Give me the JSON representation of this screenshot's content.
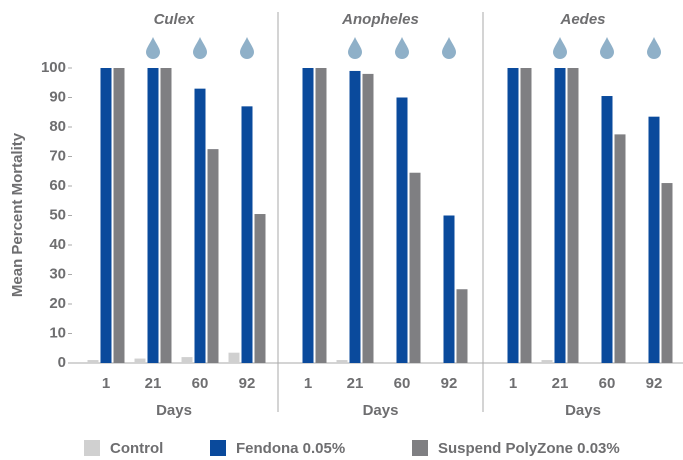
{
  "chart_data": [
    {
      "type": "bar",
      "title": "Culex",
      "xlabel": "Days",
      "ylabel": "Mean Percent Mortality",
      "categories": [
        "1",
        "21",
        "60",
        "92"
      ],
      "ylim": [
        0,
        100
      ],
      "yticks": [
        0,
        10,
        20,
        30,
        40,
        50,
        60,
        70,
        80,
        90,
        100
      ],
      "grid": false,
      "legend": "bottom",
      "series": [
        {
          "name": "Control",
          "color": "#d0d0d0",
          "values": [
            1,
            1.5,
            2,
            3.5
          ]
        },
        {
          "name": "Fendona 0.05%",
          "color": "#0a4a9c",
          "values": [
            100,
            100,
            93,
            87
          ]
        },
        {
          "name": "Suspend PolyZone 0.03%",
          "color": "#7f7f82",
          "values": [
            100,
            100,
            72.5,
            50.5
          ]
        }
      ]
    },
    {
      "type": "bar",
      "title": "Anopheles",
      "xlabel": "Days",
      "categories": [
        "1",
        "21",
        "60",
        "92"
      ],
      "ylim": [
        0,
        100
      ],
      "series": [
        {
          "color": "#d0d0d0",
          "values": [
            0,
            1,
            0,
            0
          ]
        },
        {
          "color": "#0a4a9c",
          "values": [
            100,
            99,
            90,
            50
          ]
        },
        {
          "color": "#7f7f82",
          "values": [
            100,
            98,
            64.5,
            25
          ]
        }
      ]
    },
    {
      "type": "bar",
      "title": "Aedes",
      "xlabel": "Days",
      "categories": [
        "1",
        "21",
        "60",
        "92"
      ],
      "ylim": [
        0,
        100
      ],
      "series": [
        {
          "color": "#d0d0d0",
          "values": [
            0,
            1,
            0,
            0
          ]
        },
        {
          "color": "#0a4a9c",
          "values": [
            100,
            100,
            90.5,
            83.5
          ]
        },
        {
          "color": "#7f7f82",
          "values": [
            100,
            100,
            77.5,
            61
          ]
        }
      ]
    }
  ]
}
